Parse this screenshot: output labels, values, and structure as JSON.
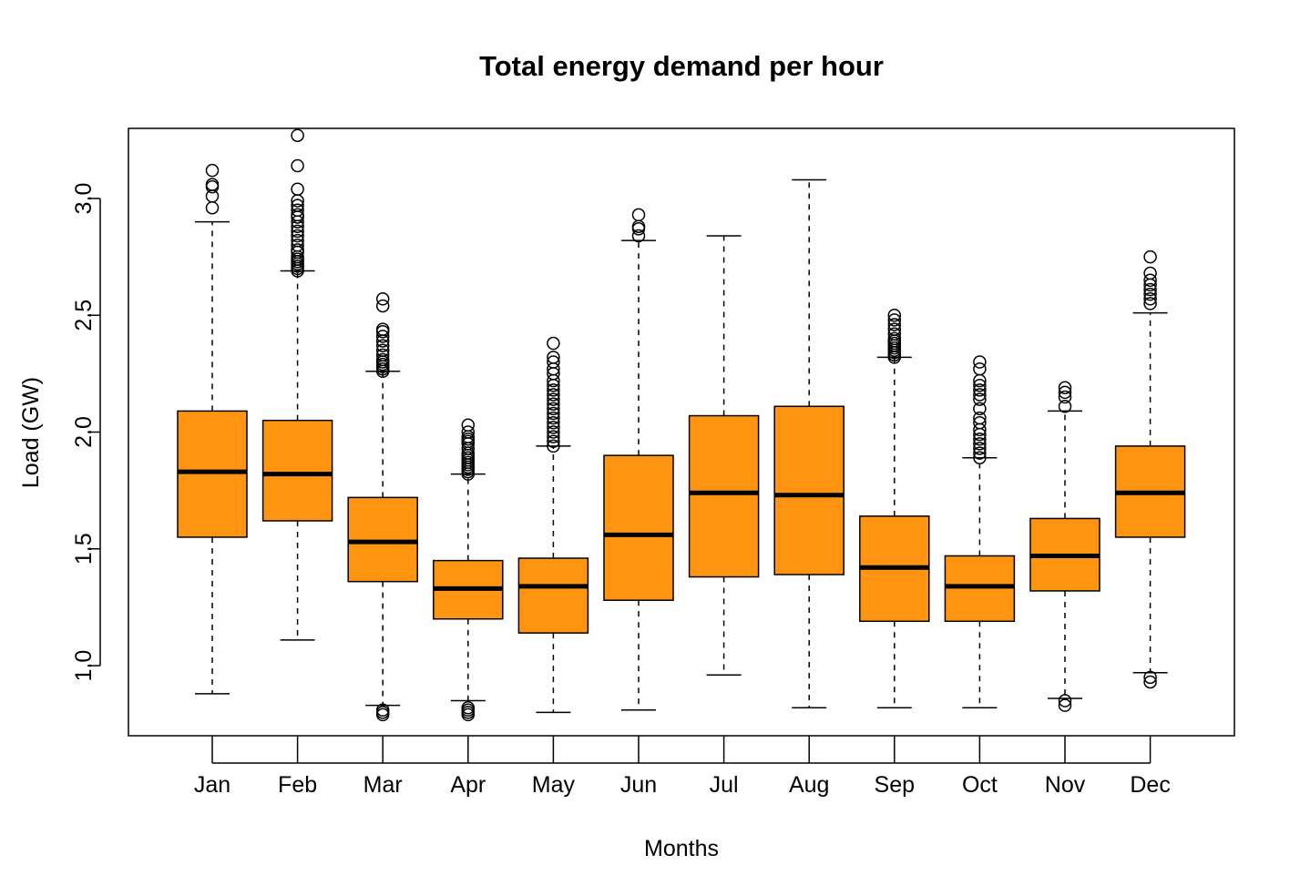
{
  "chart_data": {
    "type": "box",
    "title": "Total energy demand per hour",
    "xlabel": "Months",
    "ylabel": "Load (GW)",
    "ylim": [
      0.7,
      3.3
    ],
    "yticks": [
      "1.0",
      "1.5",
      "2.0",
      "2.5",
      "3.0"
    ],
    "categories": [
      "Jan",
      "Feb",
      "Mar",
      "Apr",
      "May",
      "Jun",
      "Jul",
      "Aug",
      "Sep",
      "Oct",
      "Nov",
      "Dec"
    ],
    "box_color": "#ff9410",
    "boxes": [
      {
        "label": "Jan",
        "whisker_low": 0.88,
        "q1": 1.55,
        "median": 1.83,
        "q3": 2.09,
        "whisker_high": 2.9,
        "outliers": [
          2.96,
          3.01,
          3.05,
          3.06,
          3.12
        ]
      },
      {
        "label": "Feb",
        "whisker_low": 1.11,
        "q1": 1.62,
        "median": 1.82,
        "q3": 2.05,
        "whisker_high": 2.69,
        "outliers": [
          2.69,
          2.7,
          2.71,
          2.72,
          2.73,
          2.74,
          2.75,
          2.77,
          2.78,
          2.8,
          2.82,
          2.84,
          2.86,
          2.88,
          2.9,
          2.92,
          2.93,
          2.95,
          2.97,
          2.99,
          3.04,
          3.14,
          3.27
        ]
      },
      {
        "label": "Mar",
        "whisker_low": 0.83,
        "q1": 1.36,
        "median": 1.53,
        "q3": 1.72,
        "whisker_high": 2.26,
        "outliers": [
          0.79,
          0.8,
          0.81,
          2.26,
          2.27,
          2.28,
          2.29,
          2.3,
          2.31,
          2.33,
          2.35,
          2.37,
          2.39,
          2.41,
          2.43,
          2.44,
          2.54,
          2.57
        ]
      },
      {
        "label": "Apr",
        "whisker_low": 0.85,
        "q1": 1.2,
        "median": 1.33,
        "q3": 1.45,
        "whisker_high": 1.82,
        "outliers": [
          0.79,
          0.8,
          0.81,
          0.82,
          1.82,
          1.83,
          1.84,
          1.85,
          1.86,
          1.87,
          1.88,
          1.89,
          1.9,
          1.91,
          1.93,
          1.95,
          1.96,
          1.97,
          1.98,
          2.0,
          2.03
        ]
      },
      {
        "label": "May",
        "whisker_low": 0.8,
        "q1": 1.14,
        "median": 1.34,
        "q3": 1.46,
        "whisker_high": 1.94,
        "outliers": [
          1.94,
          1.96,
          1.98,
          2.0,
          2.02,
          2.04,
          2.06,
          2.08,
          2.1,
          2.12,
          2.14,
          2.16,
          2.18,
          2.2,
          2.22,
          2.25,
          2.27,
          2.3,
          2.32,
          2.38
        ]
      },
      {
        "label": "Jun",
        "whisker_low": 0.81,
        "q1": 1.28,
        "median": 1.56,
        "q3": 1.9,
        "whisker_high": 2.82,
        "outliers": [
          2.84,
          2.87,
          2.88,
          2.93
        ]
      },
      {
        "label": "Jul",
        "whisker_low": 0.96,
        "q1": 1.38,
        "median": 1.74,
        "q3": 2.07,
        "whisker_high": 2.84,
        "outliers": []
      },
      {
        "label": "Aug",
        "whisker_low": 0.82,
        "q1": 1.39,
        "median": 1.73,
        "q3": 2.11,
        "whisker_high": 3.08,
        "outliers": []
      },
      {
        "label": "Sep",
        "whisker_low": 0.82,
        "q1": 1.19,
        "median": 1.42,
        "q3": 1.64,
        "whisker_high": 2.32,
        "outliers": [
          2.32,
          2.33,
          2.34,
          2.35,
          2.36,
          2.37,
          2.38,
          2.39,
          2.4,
          2.42,
          2.44,
          2.46,
          2.48,
          2.5
        ]
      },
      {
        "label": "Oct",
        "whisker_low": 0.82,
        "q1": 1.19,
        "median": 1.34,
        "q3": 1.47,
        "whisker_high": 1.89,
        "outliers": [
          1.89,
          1.91,
          1.93,
          1.95,
          1.97,
          1.99,
          2.01,
          2.04,
          2.06,
          2.1,
          2.14,
          2.16,
          2.18,
          2.2,
          2.22,
          2.27,
          2.3
        ]
      },
      {
        "label": "Nov",
        "whisker_low": 0.86,
        "q1": 1.32,
        "median": 1.47,
        "q3": 1.63,
        "whisker_high": 2.09,
        "outliers": [
          0.83,
          0.85,
          2.11,
          2.15,
          2.17,
          2.19
        ]
      },
      {
        "label": "Dec",
        "whisker_low": 0.97,
        "q1": 1.55,
        "median": 1.74,
        "q3": 1.94,
        "whisker_high": 2.51,
        "outliers": [
          0.93,
          0.95,
          2.55,
          2.57,
          2.59,
          2.61,
          2.63,
          2.65,
          2.68,
          2.75
        ]
      }
    ]
  }
}
